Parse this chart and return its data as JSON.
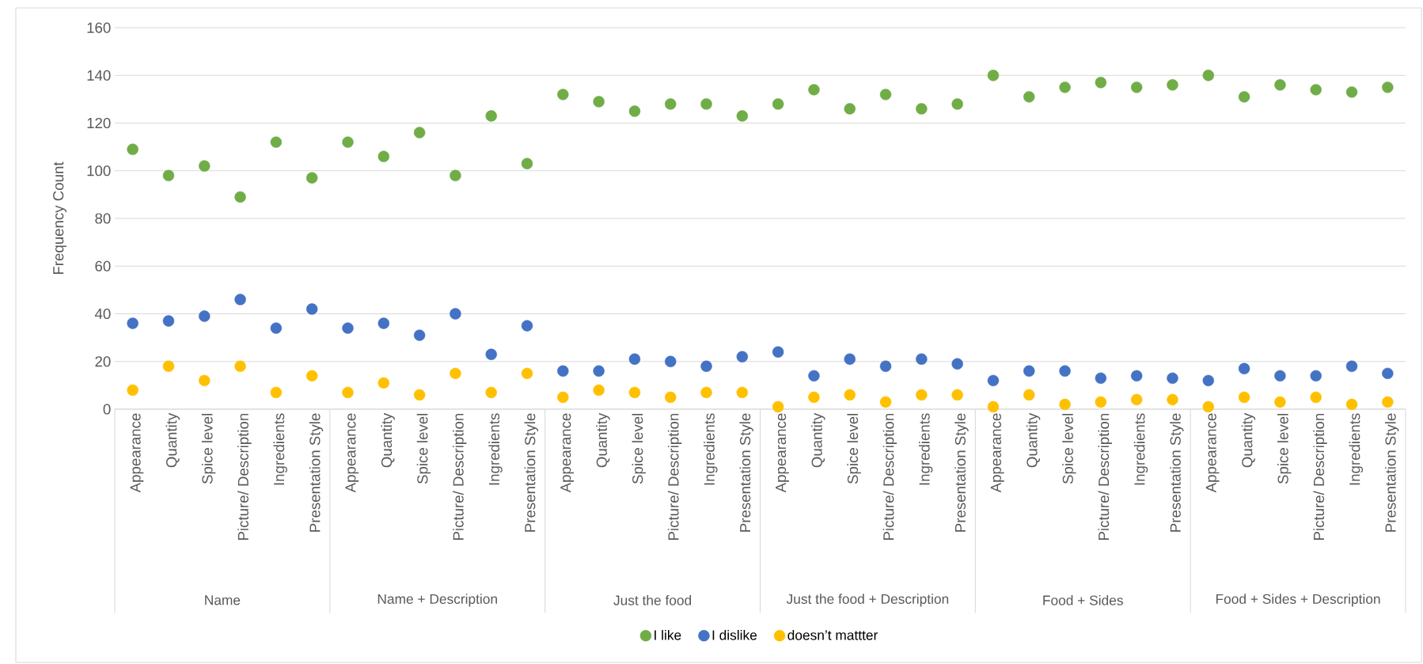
{
  "chart_data": {
    "type": "scatter",
    "ylabel": "Frequency Count",
    "categories": [
      "Appearance",
      "Quantity",
      "Spice level",
      "Picture/ Description",
      "Ingredients",
      "Presentation Style",
      "Appearance",
      "Quantity",
      "Spice level",
      "Picture/ Description",
      "Ingredients",
      "Presentation Style",
      "Appearance",
      "Quantity",
      "Spice level",
      "Picture/ Description",
      "Ingredients",
      "Presentation Style",
      "Appearance",
      "Quantity",
      "Spice level",
      "Picture/ Description",
      "Ingredients",
      "Presentation Style",
      "Appearance",
      "Quantity",
      "Spice level",
      "Picture/ Description",
      "Ingredients",
      "Presentation Style",
      "Appearance",
      "Quantity",
      "Spice level",
      "Picture/ Description",
      "Ingredients",
      "Presentation Style"
    ],
    "annotations": [
      "Name",
      "Name + Description",
      "Just the food",
      "Just the food + Description",
      "Food + Sides",
      "Food + Sides + Description"
    ],
    "series": [
      {
        "name": "I like",
        "color": "#70ad47",
        "values": [
          109,
          98,
          102,
          89,
          112,
          97,
          112,
          106,
          116,
          98,
          123,
          103,
          132,
          129,
          125,
          128,
          128,
          123,
          128,
          134,
          126,
          132,
          126,
          128,
          140,
          131,
          135,
          137,
          135,
          136,
          140,
          131,
          136,
          134,
          133,
          135
        ]
      },
      {
        "name": "I dislike",
        "color": "#4472c4",
        "values": [
          36,
          37,
          39,
          46,
          34,
          42,
          34,
          36,
          31,
          40,
          23,
          35,
          16,
          16,
          21,
          20,
          18,
          22,
          24,
          14,
          21,
          18,
          21,
          19,
          12,
          16,
          16,
          13,
          14,
          13,
          12,
          17,
          14,
          14,
          18,
          15
        ]
      },
      {
        "name": "doesn’t mattter",
        "color": "#ffc000",
        "values": [
          8,
          18,
          12,
          18,
          7,
          14,
          7,
          11,
          6,
          15,
          7,
          15,
          5,
          8,
          7,
          5,
          7,
          7,
          1,
          5,
          6,
          3,
          6,
          6,
          1,
          6,
          2,
          3,
          4,
          4,
          1,
          5,
          3,
          5,
          2,
          3
        ]
      }
    ],
    "ylim": [
      0,
      160
    ],
    "yticks": [
      0,
      20,
      40,
      60,
      80,
      100,
      120,
      140,
      160
    ],
    "grid": "y",
    "legend": "bottom",
    "marker": "circle"
  }
}
